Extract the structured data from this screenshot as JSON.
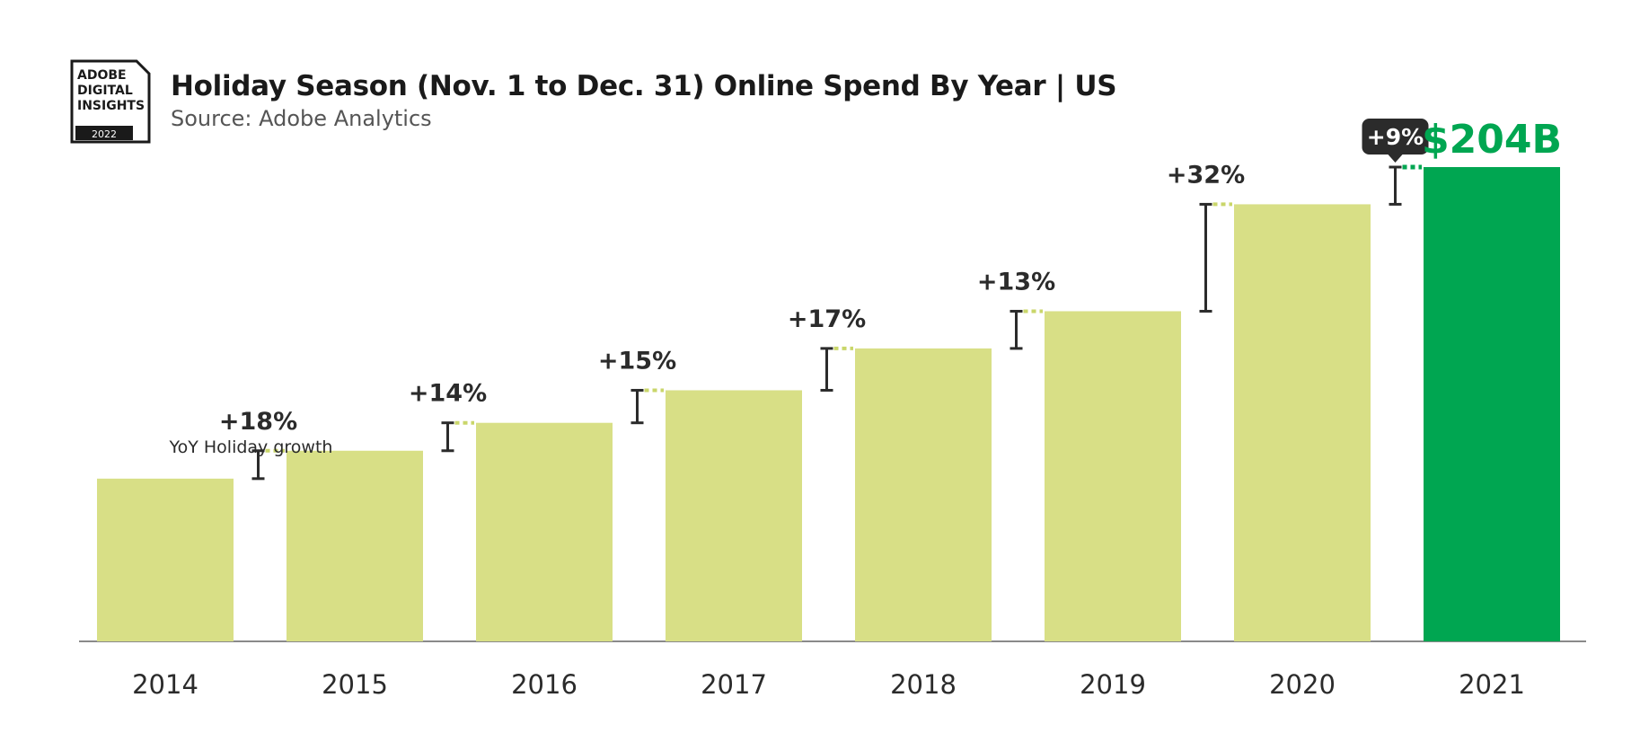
{
  "logo": {
    "line1": "ADOBE",
    "line2": "DIGITAL",
    "line3": "INSIGHTS",
    "year": "2022"
  },
  "chart_data": {
    "type": "bar",
    "title": "Holiday Season (Nov. 1 to Dec. 31) Online Spend By Year | US",
    "subtitle": "Source: Adobe Analytics",
    "categories": [
      "2014",
      "2015",
      "2016",
      "2017",
      "2018",
      "2019",
      "2020",
      "2021"
    ],
    "values": [
      70,
      82,
      94,
      108,
      126,
      142,
      188,
      204
    ],
    "growth_labels": [
      "+18%",
      "+14%",
      "+15%",
      "+17%",
      "+13%",
      "+32%",
      "+9%"
    ],
    "growth_note": "YoY Holiday growth",
    "highlight_index": 7,
    "highlight_label": "$204B",
    "ylim": [
      0,
      204
    ],
    "xlabel": "",
    "ylabel": "",
    "grid": false,
    "colors": {
      "bar": "#d8df86",
      "highlight": "#00a651",
      "connector": "#c9d66a",
      "growth_bar": "#2b2b2b",
      "badge": "#2b2b2b",
      "axis": "#8a8a8a"
    }
  }
}
